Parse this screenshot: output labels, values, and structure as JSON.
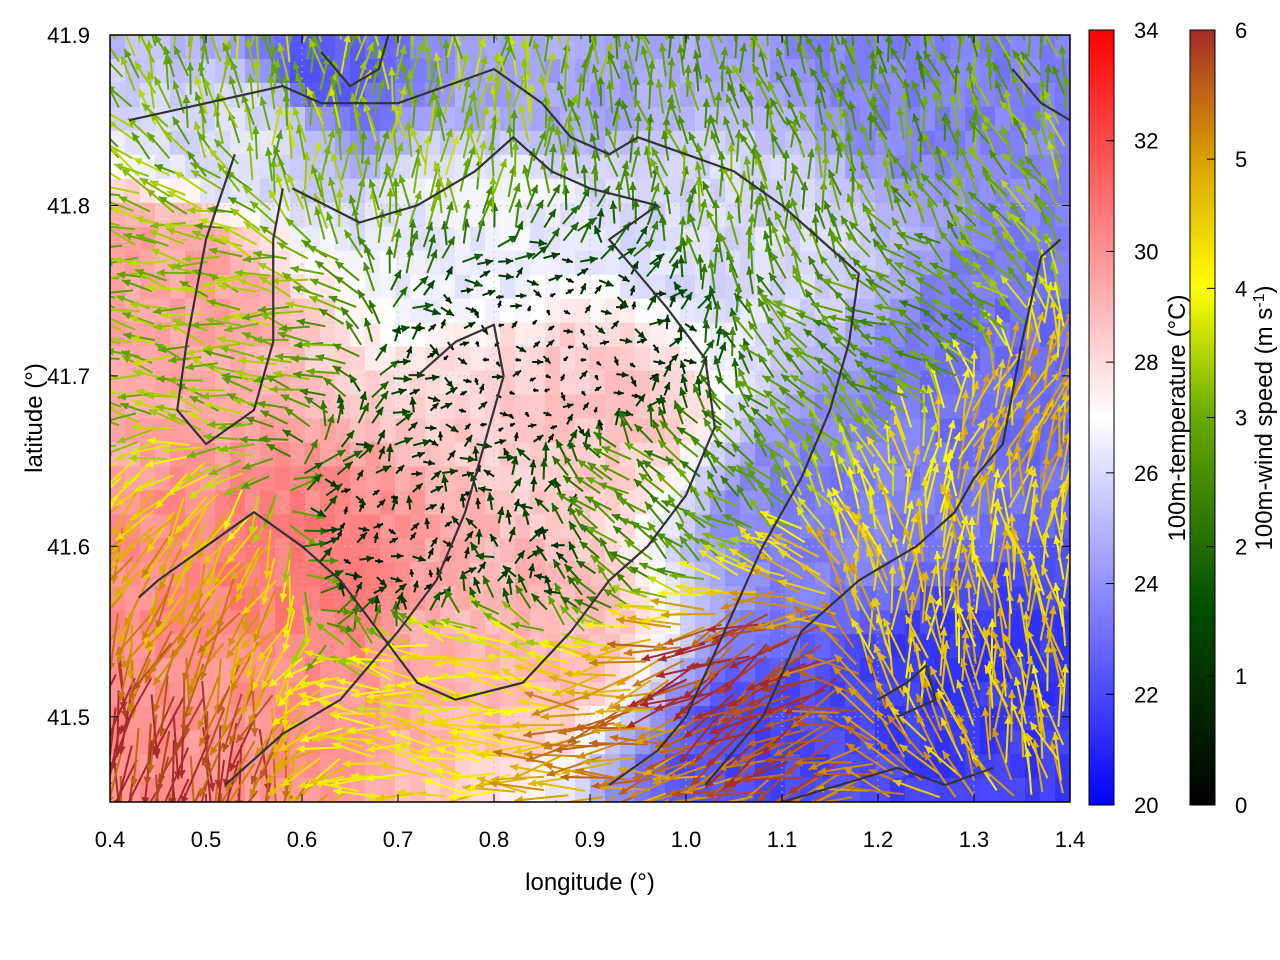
{
  "chart_data": {
    "type": "heatmap",
    "title": "",
    "xlabel": "longitude (°)",
    "ylabel": "latitude (°)",
    "xlim": [
      0.4,
      1.4
    ],
    "ylim": [
      41.45,
      41.9
    ],
    "x_ticks": [
      "0.4",
      "0.5",
      "0.6",
      "0.7",
      "0.8",
      "0.9",
      "1.0",
      "1.1",
      "1.2",
      "1.3",
      "1.4"
    ],
    "y_ticks": [
      "41.5",
      "41.6",
      "41.7",
      "41.8",
      "41.9"
    ],
    "grid": true,
    "temperature_colorbar": {
      "label": "100m-temperature (°C)",
      "range": [
        20,
        34
      ],
      "ticks": [
        "20",
        "22",
        "24",
        "26",
        "28",
        "30",
        "32",
        "34"
      ],
      "colors": {
        "low": "#0000ff",
        "mid": "#ffffff",
        "high": "#ff0000"
      }
    },
    "wind_colorbar": {
      "label": "100m-wind speed (m s",
      "label_superscript": "-1",
      "label_close": ")",
      "range": [
        0,
        6
      ],
      "ticks": [
        "0",
        "1",
        "2",
        "3",
        "4",
        "5",
        "6"
      ],
      "colors": {
        "0": "#000000",
        "1.5": "#004d00",
        "3": "#66aa00",
        "4": "#ffff00",
        "5": "#d9a000",
        "6": "#a52a2a"
      }
    },
    "temperature_regions": [
      {
        "lon": 0.62,
        "lat": 41.88,
        "temp": 22.5
      },
      {
        "lon": 0.85,
        "lat": 41.87,
        "temp": 24.5
      },
      {
        "lon": 1.25,
        "lat": 41.88,
        "temp": 23.5
      },
      {
        "lon": 1.35,
        "lat": 41.7,
        "temp": 23.0
      },
      {
        "lon": 1.3,
        "lat": 41.52,
        "temp": 21.5
      },
      {
        "lon": 1.1,
        "lat": 41.47,
        "temp": 22.0
      },
      {
        "lon": 1.15,
        "lat": 41.62,
        "temp": 23.5
      },
      {
        "lon": 0.45,
        "lat": 41.75,
        "temp": 29.5
      },
      {
        "lon": 0.6,
        "lat": 41.58,
        "temp": 30.5
      },
      {
        "lon": 0.48,
        "lat": 41.5,
        "temp": 30.0
      },
      {
        "lon": 0.9,
        "lat": 41.68,
        "temp": 28.5
      },
      {
        "lon": 0.82,
        "lat": 41.55,
        "temp": 29.0
      },
      {
        "lon": 0.8,
        "lat": 41.8,
        "temp": 26.5
      },
      {
        "lon": 1.05,
        "lat": 41.78,
        "temp": 26.0
      },
      {
        "lon": 0.55,
        "lat": 41.85,
        "temp": 26.0
      }
    ],
    "wind_regions": [
      {
        "lon": 0.45,
        "lat": 41.5,
        "speed": 5.9,
        "dir": 260
      },
      {
        "lon": 0.5,
        "lat": 41.58,
        "speed": 5.0,
        "dir": 240
      },
      {
        "lon": 1.07,
        "lat": 41.52,
        "speed": 5.9,
        "dir": 210
      },
      {
        "lon": 0.95,
        "lat": 41.48,
        "speed": 5.2,
        "dir": 190
      },
      {
        "lon": 1.27,
        "lat": 41.55,
        "speed": 4.5,
        "dir": 95
      },
      {
        "lon": 1.35,
        "lat": 41.68,
        "speed": 4.8,
        "dir": 70
      },
      {
        "lon": 0.78,
        "lat": 41.52,
        "speed": 4.2,
        "dir": 170
      },
      {
        "lon": 0.72,
        "lat": 41.85,
        "speed": 3.3,
        "dir": 90
      },
      {
        "lon": 0.5,
        "lat": 41.72,
        "speed": 3.2,
        "dir": 170
      },
      {
        "lon": 1.1,
        "lat": 41.83,
        "speed": 2.8,
        "dir": 100
      },
      {
        "lon": 1.25,
        "lat": 41.72,
        "speed": 2.6,
        "dir": 150
      },
      {
        "lon": 0.85,
        "lat": 41.7,
        "speed": 0.3,
        "dir": 0
      },
      {
        "lon": 0.7,
        "lat": 41.6,
        "speed": 0.6,
        "dir": 30
      },
      {
        "lon": 0.82,
        "lat": 41.6,
        "speed": 1.2,
        "dir": 110
      },
      {
        "lon": 0.95,
        "lat": 41.62,
        "speed": 2.6,
        "dir": 140
      }
    ],
    "terrain_contours": [
      [
        [
          0.42,
          41.85
        ],
        [
          0.5,
          41.86
        ],
        [
          0.58,
          41.87
        ],
        [
          0.62,
          41.86
        ],
        [
          0.7,
          41.86
        ],
        [
          0.75,
          41.87
        ],
        [
          0.8,
          41.88
        ],
        [
          0.85,
          41.86
        ],
        [
          0.88,
          41.84
        ],
        [
          0.92,
          41.83
        ],
        [
          0.95,
          41.84
        ],
        [
          1.0,
          41.83
        ],
        [
          1.05,
          41.82
        ],
        [
          1.1,
          41.8
        ],
        [
          1.14,
          41.78
        ],
        [
          1.18,
          41.76
        ],
        [
          1.17,
          41.72
        ],
        [
          1.15,
          41.68
        ],
        [
          1.12,
          41.64
        ],
        [
          1.08,
          41.6
        ],
        [
          1.04,
          41.55
        ],
        [
          1.0,
          41.5
        ],
        [
          0.97,
          41.48
        ],
        [
          0.92,
          41.46
        ]
      ],
      [
        [
          0.59,
          41.81
        ],
        [
          0.66,
          41.79
        ],
        [
          0.72,
          41.8
        ],
        [
          0.78,
          41.82
        ],
        [
          0.82,
          41.84
        ],
        [
          0.86,
          41.82
        ],
        [
          0.9,
          41.81
        ],
        [
          0.97,
          41.8
        ],
        [
          0.92,
          41.78
        ],
        [
          0.98,
          41.74
        ],
        [
          1.02,
          41.71
        ],
        [
          1.03,
          41.67
        ],
        [
          1.0,
          41.63
        ],
        [
          0.96,
          41.6
        ],
        [
          0.92,
          41.58
        ],
        [
          0.88,
          41.55
        ],
        [
          0.83,
          41.52
        ],
        [
          0.76,
          41.51
        ],
        [
          0.72,
          41.52
        ],
        [
          0.68,
          41.55
        ],
        [
          0.64,
          41.58
        ],
        [
          0.6,
          41.6
        ],
        [
          0.55,
          41.62
        ],
        [
          0.5,
          41.6
        ],
        [
          0.45,
          41.58
        ],
        [
          0.43,
          41.57
        ]
      ],
      [
        [
          0.53,
          41.83
        ],
        [
          0.5,
          41.78
        ],
        [
          0.48,
          41.72
        ],
        [
          0.47,
          41.68
        ],
        [
          0.5,
          41.66
        ],
        [
          0.55,
          41.68
        ],
        [
          0.57,
          41.72
        ],
        [
          0.57,
          41.78
        ],
        [
          0.58,
          41.81
        ]
      ],
      [
        [
          0.62,
          41.89
        ],
        [
          0.65,
          41.87
        ],
        [
          0.68,
          41.88
        ],
        [
          0.69,
          41.9
        ]
      ],
      [
        [
          0.52,
          41.46
        ],
        [
          0.58,
          41.49
        ],
        [
          0.64,
          41.51
        ],
        [
          0.7,
          41.55
        ],
        [
          0.74,
          41.58
        ],
        [
          0.77,
          41.62
        ],
        [
          0.79,
          41.66
        ],
        [
          0.81,
          41.7
        ],
        [
          0.8,
          41.73
        ],
        [
          0.76,
          41.72
        ],
        [
          0.72,
          41.7
        ]
      ],
      [
        [
          1.02,
          41.46
        ],
        [
          1.08,
          41.5
        ],
        [
          1.12,
          41.55
        ],
        [
          1.18,
          41.58
        ],
        [
          1.24,
          41.6
        ],
        [
          1.28,
          41.62
        ],
        [
          1.3,
          41.64
        ],
        [
          1.33,
          41.66
        ],
        [
          1.35,
          41.72
        ],
        [
          1.37,
          41.77
        ],
        [
          1.39,
          41.78
        ]
      ],
      [
        [
          1.1,
          41.45
        ],
        [
          1.16,
          41.46
        ],
        [
          1.22,
          41.47
        ],
        [
          1.27,
          41.46
        ],
        [
          1.32,
          41.47
        ]
      ],
      [
        [
          1.2,
          41.51
        ],
        [
          1.23,
          41.52
        ],
        [
          1.25,
          41.53
        ],
        [
          1.26,
          41.51
        ],
        [
          1.22,
          41.5
        ]
      ],
      [
        [
          1.34,
          41.88
        ],
        [
          1.37,
          41.86
        ],
        [
          1.4,
          41.85
        ]
      ]
    ]
  }
}
